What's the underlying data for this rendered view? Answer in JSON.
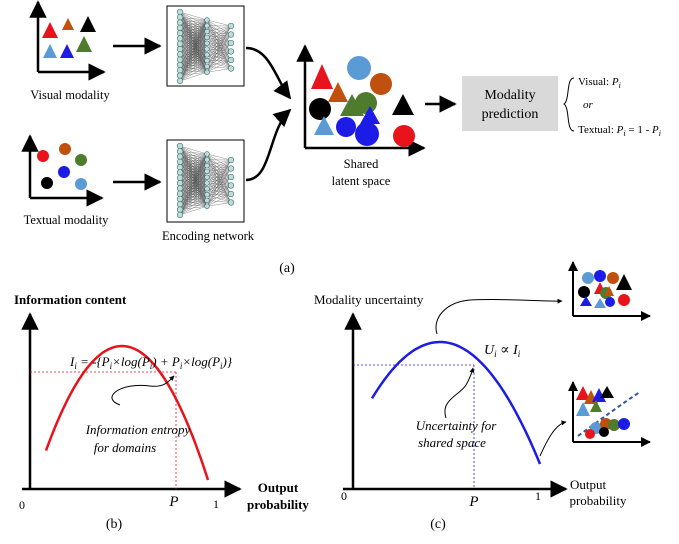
{
  "panel_a": {
    "visual_label": "Visual modality",
    "textual_label": "Textual modality",
    "encoder_label": "Encoding network",
    "shared_label_line1": "Shared",
    "shared_label_line2": "latent space",
    "prediction_line1": "Modality",
    "prediction_line2": "prediction",
    "visual_out_prefix": "Visual: ",
    "p_symbol": "P",
    "sub_i": "i",
    "or_word": "or",
    "textual_out_prefix": "Textual: ",
    "textual_out_eq": " = 1 - ",
    "caption": "(a)"
  },
  "panel_b": {
    "y_label": "Information content",
    "formula": "I",
    "formula_sub": "i",
    "formula_rest": " = -{P",
    "formula_rest2": "×log(P",
    "formula_rest3": ") + P",
    "formula_rest4": "×log(P",
    "formula_rest5": ")}",
    "annotation_line1": "Information entropy",
    "annotation_line2": "for domains",
    "x_label_line1": "Output",
    "x_label_line2": "probability",
    "tick_0": "0",
    "tick_p": "P",
    "tick_1": "1",
    "caption": "(b)"
  },
  "panel_c": {
    "y_label": "Modality uncertainty",
    "relation_u": "U",
    "relation_rest": " ∝ I",
    "sub_i": "i",
    "annotation_line1": "Uncertainty for",
    "annotation_line2": "shared space",
    "x_label_line1": "Output",
    "x_label_line2": "probability",
    "tick_0": "0",
    "tick_p": "P",
    "tick_1": "1",
    "caption": "(c)"
  },
  "colors": {
    "red": "#e8131b",
    "orange": "#c0500d",
    "green": "#4f7b2c",
    "blue": "#1c1ce6",
    "light_blue": "#5b9bd5",
    "black": "#000000",
    "gray_box": "#d9d9d9",
    "curve_b": "#e8131b",
    "curve_c": "#1c1ce6"
  }
}
